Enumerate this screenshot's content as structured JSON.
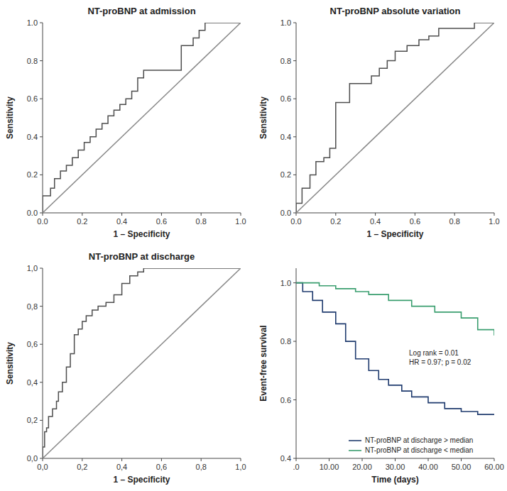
{
  "chart_data": [
    {
      "type": "line",
      "title": "NT-proBNP at admission",
      "x_label": "1 – Specificity",
      "y_label": "Sensitivity",
      "xlim": [
        0,
        1
      ],
      "ylim": [
        0,
        1
      ],
      "xticks": [
        {
          "value": 0,
          "label": "0.0"
        },
        0.2,
        0.4,
        0.6,
        0.8,
        {
          "value": 1,
          "label": "1.0"
        }
      ],
      "yticks": [
        {
          "value": 0,
          "label": "0.0"
        },
        0.2,
        0.4,
        0.6,
        0.8,
        {
          "value": 1,
          "label": "1.0"
        }
      ],
      "grid": false,
      "series": [
        {
          "color": "#4d4d4d",
          "x": [
            0.0,
            0.0,
            0.04,
            0.04,
            0.06,
            0.06,
            0.09,
            0.09,
            0.12,
            0.12,
            0.15,
            0.15,
            0.18,
            0.18,
            0.21,
            0.21,
            0.24,
            0.24,
            0.27,
            0.27,
            0.3,
            0.3,
            0.33,
            0.33,
            0.36,
            0.36,
            0.39,
            0.39,
            0.42,
            0.42,
            0.45,
            0.45,
            0.48,
            0.48,
            0.51,
            0.51,
            0.7,
            0.7,
            0.76,
            0.76,
            0.79,
            0.79,
            0.82,
            0.82,
            1.0,
            1.0
          ],
          "values": [
            0.0,
            0.09,
            0.09,
            0.13,
            0.13,
            0.18,
            0.18,
            0.22,
            0.22,
            0.25,
            0.25,
            0.29,
            0.29,
            0.33,
            0.33,
            0.37,
            0.37,
            0.4,
            0.4,
            0.44,
            0.44,
            0.47,
            0.47,
            0.51,
            0.51,
            0.54,
            0.54,
            0.57,
            0.57,
            0.6,
            0.6,
            0.64,
            0.64,
            0.71,
            0.71,
            0.75,
            0.75,
            0.88,
            0.88,
            0.92,
            0.92,
            0.96,
            0.96,
            1.0,
            1.0,
            1.0
          ]
        },
        {
          "color": "#888888",
          "x": [
            0,
            1
          ],
          "values": [
            0,
            1
          ]
        }
      ]
    },
    {
      "type": "line",
      "title": "NT-proBNP absolute variation",
      "x_label": "1 – Specificity",
      "y_label": "Sensitivity",
      "xlim": [
        0,
        1
      ],
      "ylim": [
        0,
        1
      ],
      "xticks": [
        {
          "value": 0,
          "label": "0.0"
        },
        0.2,
        0.4,
        0.6,
        0.8,
        {
          "value": 1,
          "label": "1.0"
        }
      ],
      "yticks": [
        {
          "value": 0,
          "label": "0.0"
        },
        0.2,
        0.4,
        0.6,
        0.8,
        {
          "value": 1,
          "label": "1.0"
        }
      ],
      "grid": false,
      "series": [
        {
          "color": "#4d4d4d",
          "x": [
            0.0,
            0.0,
            0.03,
            0.03,
            0.07,
            0.07,
            0.1,
            0.1,
            0.14,
            0.14,
            0.17,
            0.17,
            0.2,
            0.2,
            0.27,
            0.27,
            0.38,
            0.38,
            0.42,
            0.42,
            0.46,
            0.46,
            0.5,
            0.5,
            0.56,
            0.56,
            0.62,
            0.62,
            0.67,
            0.67,
            0.72,
            0.72,
            0.9,
            0.9,
            0.97,
            0.97,
            1.0,
            1.0
          ],
          "values": [
            0.0,
            0.05,
            0.05,
            0.13,
            0.13,
            0.2,
            0.2,
            0.27,
            0.27,
            0.29,
            0.29,
            0.34,
            0.34,
            0.58,
            0.58,
            0.68,
            0.68,
            0.72,
            0.72,
            0.76,
            0.76,
            0.8,
            0.8,
            0.85,
            0.85,
            0.88,
            0.88,
            0.91,
            0.91,
            0.93,
            0.93,
            0.97,
            0.97,
            1.0,
            1.0,
            1.0,
            1.0,
            1.0
          ]
        },
        {
          "color": "#888888",
          "x": [
            0,
            1
          ],
          "values": [
            0,
            1
          ]
        }
      ]
    },
    {
      "type": "line",
      "title": "NT-proBNP at discharge",
      "x_label": "1 – Specificity",
      "y_label": "Sensitivity",
      "xlim": [
        0,
        1
      ],
      "ylim": [
        0,
        1
      ],
      "xticks": [
        {
          "value": 0,
          "label": "0,0"
        },
        {
          "value": 0.2,
          "label": "0,2"
        },
        {
          "value": 0.4,
          "label": "0,4"
        },
        {
          "value": 0.6,
          "label": "0,6"
        },
        {
          "value": 0.8,
          "label": "0,8"
        },
        {
          "value": 1,
          "label": "1,0"
        }
      ],
      "yticks": [
        {
          "value": 0,
          "label": "0,0"
        },
        {
          "value": 0.2,
          "label": "0,2"
        },
        {
          "value": 0.4,
          "label": "0,4"
        },
        {
          "value": 0.6,
          "label": "0,6"
        },
        {
          "value": 0.8,
          "label": "0,8"
        },
        {
          "value": 1,
          "label": "1,0"
        }
      ],
      "grid": false,
      "series": [
        {
          "color": "#4d4d4d",
          "x": [
            0.0,
            0.0,
            0.01,
            0.01,
            0.02,
            0.02,
            0.03,
            0.03,
            0.05,
            0.05,
            0.07,
            0.07,
            0.08,
            0.08,
            0.1,
            0.1,
            0.12,
            0.12,
            0.14,
            0.14,
            0.16,
            0.16,
            0.18,
            0.18,
            0.2,
            0.2,
            0.22,
            0.22,
            0.25,
            0.25,
            0.28,
            0.28,
            0.32,
            0.32,
            0.36,
            0.36,
            0.4,
            0.4,
            0.44,
            0.44,
            0.48,
            0.48,
            0.51,
            0.51,
            0.6,
            0.6,
            1.0,
            1.0
          ],
          "values": [
            0.0,
            0.06,
            0.06,
            0.14,
            0.14,
            0.16,
            0.16,
            0.22,
            0.22,
            0.26,
            0.26,
            0.3,
            0.3,
            0.35,
            0.35,
            0.4,
            0.4,
            0.48,
            0.48,
            0.55,
            0.55,
            0.65,
            0.65,
            0.68,
            0.68,
            0.72,
            0.72,
            0.75,
            0.75,
            0.78,
            0.78,
            0.8,
            0.8,
            0.82,
            0.82,
            0.86,
            0.86,
            0.92,
            0.92,
            0.96,
            0.96,
            0.98,
            0.98,
            1.0,
            1.0,
            1.0,
            1.0,
            1.0
          ]
        },
        {
          "color": "#888888",
          "x": [
            0,
            1
          ],
          "values": [
            0,
            1
          ]
        }
      ]
    },
    {
      "type": "line",
      "line_style": "step",
      "x_label": "Time (days)",
      "y_label": "Event-free survival",
      "xlim": [
        0,
        60
      ],
      "ylim": [
        0.4,
        1.05
      ],
      "xticks": [
        {
          "value": 0,
          "label": ".0"
        },
        {
          "value": 10,
          "label": "10.00"
        },
        {
          "value": 20,
          "label": "20.00"
        },
        {
          "value": 30,
          "label": "30.00"
        },
        {
          "value": 40,
          "label": "40.00"
        },
        {
          "value": 50,
          "label": "50.00"
        },
        {
          "value": 60,
          "label": "60.00"
        }
      ],
      "yticks": [
        0.4,
        0.6,
        0.8,
        {
          "value": 1,
          "label": "1.0"
        }
      ],
      "grid": false,
      "legend": "lower right",
      "annotation": "Log rank = 0.01\nHR = 0.97; p = 0.02",
      "series": [
        {
          "name": "NT-proBNP at discharge > median",
          "color": "#1f3b6e",
          "x": [
            0.0,
            2.0,
            5.0,
            8.0,
            12.0,
            15.0,
            18.0,
            22.0,
            25.0,
            28.0,
            32.0,
            35.0,
            40.0,
            45.0,
            50.0,
            55.0,
            60.0
          ],
          "values": [
            1.0,
            0.97,
            0.94,
            0.9,
            0.86,
            0.8,
            0.74,
            0.7,
            0.67,
            0.65,
            0.63,
            0.61,
            0.59,
            0.57,
            0.56,
            0.55,
            0.55
          ]
        },
        {
          "name": "NT-proBNP at discharge < median",
          "color": "#3a9e6f",
          "x": [
            0.0,
            3.0,
            7.0,
            12.0,
            18.0,
            22.0,
            28.0,
            35.0,
            42.0,
            50.0,
            55.0,
            60.0
          ],
          "values": [
            1.0,
            1.0,
            0.99,
            0.98,
            0.97,
            0.96,
            0.94,
            0.92,
            0.9,
            0.88,
            0.84,
            0.82
          ]
        }
      ]
    }
  ]
}
